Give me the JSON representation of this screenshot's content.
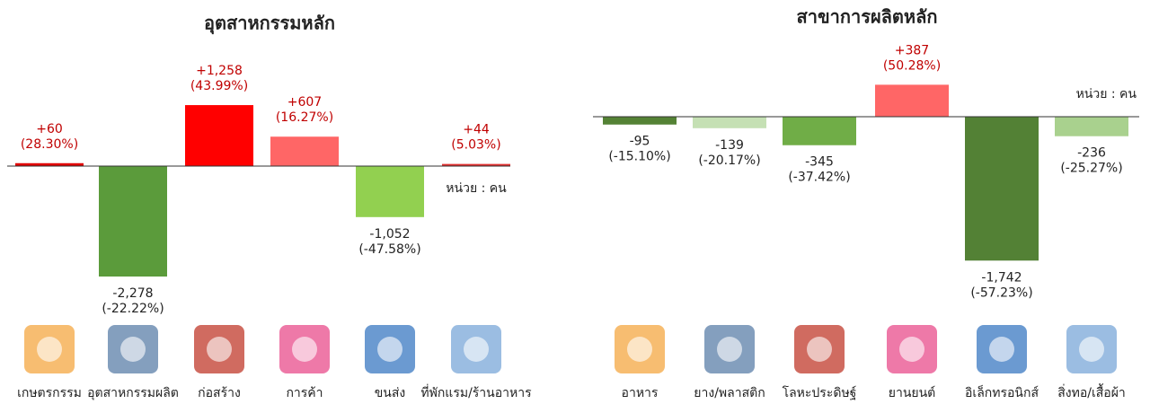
{
  "chart_data": [
    {
      "type": "bar",
      "title": "อุตสาหกรรมหลัก",
      "unit_note": "หน่วย : คน",
      "categories": [
        "เกษตรกรรม",
        "อุตสาหกรรมผลิต",
        "ก่อสร้าง",
        "การค้า",
        "ขนส่ง",
        "ที่พักแรม/ร้านอาหาร"
      ],
      "values": [
        60,
        -2278,
        1258,
        607,
        -1052,
        44
      ],
      "value_labels": [
        "+60",
        "-2,278",
        "+1,258",
        "+607",
        "-1,052",
        "+44"
      ],
      "percent_labels": [
        "(28.30%)",
        "(-22.22%)",
        "(43.99%)",
        "(16.27%)",
        "(-47.58%)",
        "(5.03%)"
      ],
      "colors": [
        "#e00000",
        "#5b9b3b",
        "#ff0000",
        "#ff6666",
        "#92d050",
        "#e03030"
      ]
    },
    {
      "type": "bar",
      "title": "สาขาการผลิตหลัก",
      "unit_note": "หน่วย : คน",
      "categories": [
        "อาหาร",
        "ยาง/พลาสติก",
        "โลหะประดิษฐ์",
        "ยานยนต์",
        "อิเล็กทรอนิกส์",
        "สิ่งทอ/เสื้อผ้า"
      ],
      "values": [
        -95,
        -139,
        -345,
        387,
        -1742,
        -236
      ],
      "value_labels": [
        "-95",
        "-139",
        "-345",
        "+387",
        "-1,742",
        "-236"
      ],
      "percent_labels": [
        "(-15.10%)",
        "(-20.17%)",
        "(-37.42%)",
        "(50.28%)",
        "(-57.23%)",
        "(-25.27%)"
      ],
      "colors": [
        "#548235",
        "#c5e0b4",
        "#70ad47",
        "#ff6666",
        "#538135",
        "#a9d18e"
      ]
    }
  ]
}
